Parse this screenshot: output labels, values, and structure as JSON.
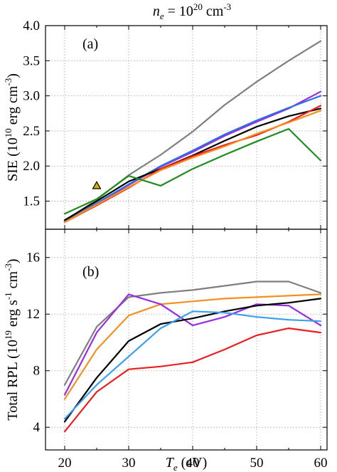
{
  "title": {
    "symbol": "n",
    "subscript": "e",
    "equals": " = 10",
    "exponent": "20",
    "unit": " cm",
    "unit_exp": "-3"
  },
  "colors": {
    "gray": "#7f7f7f",
    "blue": "#2f6fe0",
    "light_blue": "#3aa0ee",
    "black": "#000000",
    "orange": "#f5901e",
    "red": "#e82020",
    "green": "#1e8c1e",
    "purple": "#9b2de0",
    "marker_fill": "#d4b000"
  },
  "chart_data": [
    {
      "type": "line",
      "panel_label": "(a)",
      "ylabel": {
        "main": "SIE (10",
        "exp1": "10",
        "mid": " erg cm",
        "exp2": "-3",
        "end": ")"
      },
      "xlim": [
        17,
        61
      ],
      "ylim": [
        1.1,
        4.0
      ],
      "yticks": [
        "1.5",
        "2.0",
        "2.5",
        "3.0",
        "3.5",
        "4.0"
      ],
      "ytick_values": [
        1.5,
        2.0,
        2.5,
        3.0,
        3.5,
        4.0
      ],
      "grid": true,
      "series": [
        {
          "color": "gray",
          "x": [
            20,
            25,
            30,
            35,
            40,
            45,
            50,
            55,
            60
          ],
          "y": [
            1.22,
            1.52,
            1.87,
            2.16,
            2.49,
            2.87,
            3.2,
            3.5,
            3.78
          ]
        },
        {
          "color": "purple",
          "x": [
            20,
            25,
            30,
            35,
            40,
            45,
            50,
            55,
            60
          ],
          "y": [
            1.21,
            1.46,
            1.73,
            1.99,
            2.2,
            2.43,
            2.63,
            2.82,
            3.06
          ]
        },
        {
          "color": "blue",
          "x": [
            20,
            25,
            30,
            35,
            40,
            45,
            50,
            55,
            60
          ],
          "y": [
            1.2,
            1.47,
            1.74,
            2.0,
            2.22,
            2.45,
            2.65,
            2.83,
            3.0
          ]
        },
        {
          "color": "black",
          "x": [
            20,
            25,
            30,
            35,
            40,
            45,
            50,
            55,
            60
          ],
          "y": [
            1.23,
            1.5,
            1.78,
            1.96,
            2.15,
            2.36,
            2.56,
            2.71,
            2.82
          ]
        },
        {
          "color": "red",
          "x": [
            20,
            25,
            30,
            35,
            40,
            45,
            50,
            55,
            60
          ],
          "y": [
            1.2,
            1.44,
            1.69,
            1.96,
            2.14,
            2.3,
            2.44,
            2.63,
            2.86
          ]
        },
        {
          "color": "orange",
          "x": [
            20,
            25,
            30,
            35,
            40,
            45,
            50,
            55,
            60
          ],
          "y": [
            1.2,
            1.45,
            1.7,
            1.94,
            2.12,
            2.28,
            2.46,
            2.62,
            2.79
          ]
        },
        {
          "color": "green",
          "x": [
            20,
            25,
            30,
            35,
            40,
            45,
            50,
            55,
            60
          ],
          "y": [
            1.32,
            1.53,
            1.86,
            1.72,
            1.96,
            2.16,
            2.35,
            2.53,
            2.08
          ]
        }
      ],
      "markers": [
        {
          "shape": "triangle",
          "x": 25,
          "y": 1.72,
          "color": "marker_fill"
        }
      ]
    },
    {
      "type": "line",
      "panel_label": "(b)",
      "ylabel": {
        "main": "Total RPL (10",
        "exp1": "19",
        "mid": " erg s",
        "exp2": "-1",
        "mid2": " cm",
        "exp3": "-3",
        "end": ")"
      },
      "xlabel": {
        "symbol": "T",
        "subscript": "e",
        "unit": " (eV)"
      },
      "xlim": [
        17,
        61
      ],
      "ylim": [
        2.4,
        18.0
      ],
      "yticks": [
        "4",
        "8",
        "12",
        "16"
      ],
      "ytick_values": [
        4,
        8,
        12,
        16
      ],
      "xticks": [
        "20",
        "30",
        "40",
        "50",
        "60"
      ],
      "xtick_values": [
        20,
        30,
        40,
        50,
        60
      ],
      "grid": true,
      "series": [
        {
          "color": "gray",
          "x": [
            20,
            25,
            30,
            35,
            40,
            45,
            50,
            55,
            60
          ],
          "y": [
            7.0,
            11.1,
            13.2,
            13.5,
            13.7,
            14.0,
            14.3,
            14.3,
            13.5
          ]
        },
        {
          "color": "orange",
          "x": [
            20,
            25,
            30,
            35,
            40,
            45,
            50,
            55,
            60
          ],
          "y": [
            6.0,
            9.5,
            11.9,
            12.7,
            12.9,
            13.1,
            13.2,
            13.3,
            13.4
          ]
        },
        {
          "color": "purple",
          "x": [
            20,
            25,
            30,
            35,
            40,
            45,
            50,
            55,
            60
          ],
          "y": [
            6.3,
            10.7,
            13.4,
            12.7,
            11.2,
            11.8,
            12.7,
            12.6,
            11.2
          ]
        },
        {
          "color": "black",
          "x": [
            20,
            25,
            30,
            35,
            40,
            45,
            50,
            55,
            60
          ],
          "y": [
            4.4,
            7.5,
            10.1,
            11.3,
            11.7,
            12.2,
            12.6,
            12.8,
            13.1
          ]
        },
        {
          "color": "light_blue",
          "x": [
            20,
            25,
            30,
            35,
            40,
            45,
            50,
            55,
            60
          ],
          "y": [
            4.6,
            7.0,
            9.0,
            11.0,
            12.2,
            12.1,
            11.8,
            11.6,
            11.5
          ]
        },
        {
          "color": "red",
          "x": [
            20,
            25,
            30,
            35,
            40,
            45,
            50,
            55,
            60
          ],
          "y": [
            3.7,
            6.5,
            8.1,
            8.3,
            8.6,
            9.5,
            10.5,
            11.0,
            10.7
          ]
        }
      ]
    }
  ]
}
